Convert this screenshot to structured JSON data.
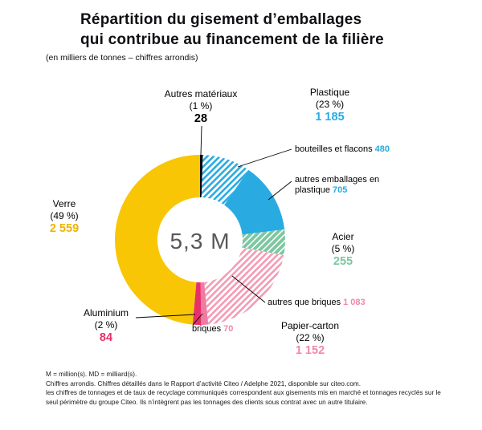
{
  "header": {
    "title_line1": "Répartition du gisement d’emballages",
    "title_line2": "qui contribue au financement de la filière",
    "subtitle": "(en milliers de tonnes – chiffres arrondis)"
  },
  "colors": {
    "verre": "#f9c606",
    "verre_text": "#eeb400",
    "plastique": "#29abe2",
    "acier": "#7cc7a1",
    "papier": "#f49ab5",
    "papier_text": "#f287a8",
    "papier_fonce": "#ee7ba2",
    "aluminium": "#e73069",
    "noir": "#000000",
    "centre": "#58585c"
  },
  "chart_data": {
    "type": "pie",
    "title": "Répartition du gisement d’emballages qui contribue au financement de la filière",
    "subtitle": "(en milliers de tonnes – chiffres arrondis)",
    "unit": "milliers de tonnes",
    "center_label": "5,3 M",
    "legend_position": "callouts",
    "categories": [
      {
        "label": "Verre",
        "percent": 49,
        "value": 2559
      },
      {
        "label": "Plastique",
        "percent": 23,
        "value": 1185,
        "children": [
          {
            "label": "bouteilles et flacons",
            "value": 480
          },
          {
            "label": "autres emballages en plastique",
            "value": 705
          }
        ]
      },
      {
        "label": "Acier",
        "percent": 5,
        "value": 255
      },
      {
        "label": "Papier-carton",
        "percent": 22,
        "value": 1152,
        "children": [
          {
            "label": "autres que briques",
            "value": 1083
          },
          {
            "label": "briques",
            "value": 70
          }
        ]
      },
      {
        "label": "Aluminium",
        "percent": 2,
        "value": 84
      },
      {
        "label": "Autres matériaux",
        "percent": 1,
        "value": 28
      }
    ],
    "segments": [
      {
        "id": "autres-materiaux",
        "label": "Autres matériaux",
        "value": 28,
        "color": "noir",
        "fill": "solid"
      },
      {
        "id": "plastique-bouteilles",
        "label": "bouteilles et flacons",
        "value": 480,
        "color": "plastique",
        "fill": "hatch-light"
      },
      {
        "id": "plastique-autres",
        "label": "autres emballages en plastique",
        "value": 705,
        "color": "plastique",
        "fill": "solid"
      },
      {
        "id": "acier",
        "label": "Acier",
        "value": 255,
        "color": "acier",
        "fill": "hatch-dense"
      },
      {
        "id": "papier-autres-que-briques",
        "label": "autres que briques",
        "value": 1083,
        "color": "papier",
        "fill": "hatch-light"
      },
      {
        "id": "papier-briques",
        "label": "briques",
        "value": 70,
        "color": "papier_fonce",
        "fill": "solid"
      },
      {
        "id": "aluminium",
        "label": "Aluminium",
        "value": 84,
        "color": "aluminium",
        "fill": "solid"
      },
      {
        "id": "verre",
        "label": "Verre",
        "value": 2559,
        "color": "verre",
        "fill": "solid"
      }
    ]
  },
  "callouts": {
    "verre": {
      "name": "Verre",
      "pct": "(49 %)",
      "value": "2 559"
    },
    "autres_materiaux": {
      "name": "Autres matériaux",
      "pct": "(1 %)",
      "value": "28"
    },
    "plastique": {
      "name": "Plastique",
      "pct": "(23 %)",
      "value": "1 185"
    },
    "bouteilles": {
      "text": "bouteilles et flacons",
      "value": "480"
    },
    "autres_plastique": {
      "text": "autres emballages en plastique",
      "value": "705"
    },
    "acier": {
      "name": "Acier",
      "pct": "(5 %)",
      "value": "255"
    },
    "autres_briques": {
      "text": "autres que briques",
      "value": "1 083"
    },
    "papier": {
      "name": "Papier-carton",
      "pct": "(22 %)",
      "value": "1 152"
    },
    "briques": {
      "text": "briques",
      "value": "70"
    },
    "aluminium": {
      "name": "Aluminium",
      "pct": "(2 %)",
      "value": "84"
    }
  },
  "footnotes": [
    "M = million(s). MD = milliard(s).",
    "Chiffres arrondis. Chiffres détaillés dans le Rapport d’activité Citeo / Adelphe 2021, disponible sur citeo.com.",
    "les chiffres de tonnages et de taux de recyclage communiqués correspondent aux gisements mis en marché et tonnages recyclés sur le seul périmètre du groupe Citeo. Ils n’intègrent pas les tonnages des clients sous contrat avec un autre titulaire."
  ]
}
